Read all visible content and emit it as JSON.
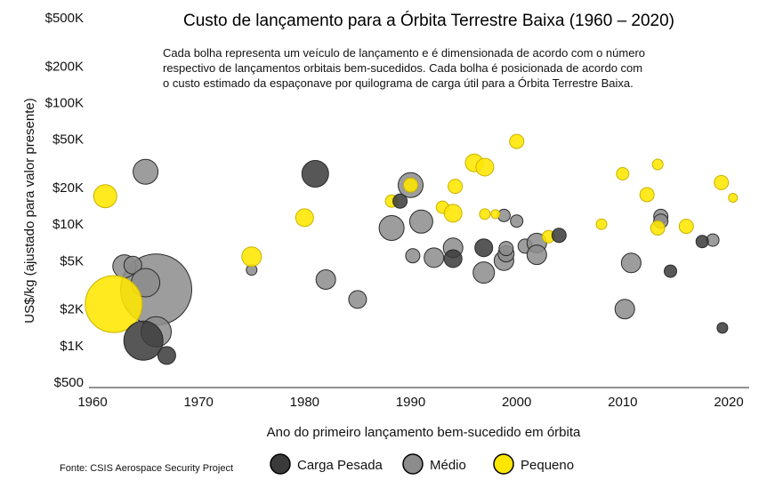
{
  "chart_data": {
    "type": "scatter",
    "title": "Custo de lançamento para a Órbita Terrestre Baixa (1960 – 2020)",
    "annotation": [
      "Cada bolha representa um veículo de lançamento e é dimensionada de acordo com o número",
      "respectivo de lançamentos orbitais bem-sucedidos. Cada bolha é posicionada de acordo com",
      "o custo estimado da espaçonave por quilograma de carga útil para a Órbita Terrestre Baixa."
    ],
    "xlabel": "Ano do primeiro lançamento bem-sucedido em órbita",
    "ylabel": "US$/kg (ajustado para valor presente)",
    "source": "Fonte: CSIS Aerospace Security Project",
    "y_scale": "log",
    "xlim": [
      1960,
      2022
    ],
    "ylim": [
      500,
      500000
    ],
    "x_ticks": [
      {
        "value": 1960,
        "label": "1960"
      },
      {
        "value": 1970,
        "label": "1970"
      },
      {
        "value": 1980,
        "label": "1980"
      },
      {
        "value": 1990,
        "label": "1990"
      },
      {
        "value": 2000,
        "label": "2000"
      },
      {
        "value": 2010,
        "label": "2010"
      },
      {
        "value": 2020,
        "label": "2020"
      }
    ],
    "y_ticks": [
      {
        "value": 500,
        "label": "$500"
      },
      {
        "value": 1000,
        "label": "$1K"
      },
      {
        "value": 2000,
        "label": "$2K"
      },
      {
        "value": 5000,
        "label": "$5K"
      },
      {
        "value": 10000,
        "label": "$10K"
      },
      {
        "value": 20000,
        "label": "$20K"
      },
      {
        "value": 50000,
        "label": "$50K"
      },
      {
        "value": 100000,
        "label": "$100K"
      },
      {
        "value": 200000,
        "label": "$200K"
      },
      {
        "value": 500000,
        "label": "$500K"
      }
    ],
    "grid": false,
    "legend_position": "bottom",
    "series": [
      {
        "name": "Carga Pesada",
        "color": "#3a3a3a",
        "points": [
          {
            "x": 1964.8,
            "y": 1100,
            "r": 22
          },
          {
            "x": 1967.0,
            "y": 830,
            "r": 10
          },
          {
            "x": 1981.0,
            "y": 26000,
            "r": 15
          },
          {
            "x": 1989.0,
            "y": 15500,
            "r": 8
          },
          {
            "x": 1994.0,
            "y": 5200,
            "r": 10
          },
          {
            "x": 1996.9,
            "y": 6400,
            "r": 10
          },
          {
            "x": 2004.0,
            "y": 8100,
            "r": 8
          },
          {
            "x": 2014.5,
            "y": 4100,
            "r": 7
          },
          {
            "x": 2017.5,
            "y": 7200,
            "r": 7
          },
          {
            "x": 2019.4,
            "y": 1400,
            "r": 6
          }
        ]
      },
      {
        "name": "Médio",
        "color": "#8c8c8c",
        "points": [
          {
            "x": 1966.0,
            "y": 2900,
            "r": 40
          },
          {
            "x": 1966.0,
            "y": 1300,
            "r": 17
          },
          {
            "x": 1963.0,
            "y": 4500,
            "r": 13
          },
          {
            "x": 1963.8,
            "y": 4600,
            "r": 10
          },
          {
            "x": 1965.0,
            "y": 3300,
            "r": 16
          },
          {
            "x": 1965.0,
            "y": 27000,
            "r": 14
          },
          {
            "x": 1975.0,
            "y": 4200,
            "r": 6
          },
          {
            "x": 1982.0,
            "y": 3500,
            "r": 11
          },
          {
            "x": 1985.0,
            "y": 2400,
            "r": 10
          },
          {
            "x": 1988.2,
            "y": 9300,
            "r": 14
          },
          {
            "x": 1990.2,
            "y": 5500,
            "r": 8
          },
          {
            "x": 1990.0,
            "y": 21000,
            "r": 14
          },
          {
            "x": 1991.0,
            "y": 10500,
            "r": 13
          },
          {
            "x": 1992.2,
            "y": 5300,
            "r": 11
          },
          {
            "x": 1994.0,
            "y": 6400,
            "r": 11
          },
          {
            "x": 1996.9,
            "y": 4000,
            "r": 12
          },
          {
            "x": 1998.8,
            "y": 5000,
            "r": 11
          },
          {
            "x": 1999.0,
            "y": 5700,
            "r": 9
          },
          {
            "x": 1999.0,
            "y": 6300,
            "r": 8
          },
          {
            "x": 1998.8,
            "y": 11800,
            "r": 7
          },
          {
            "x": 2000.0,
            "y": 10600,
            "r": 7
          },
          {
            "x": 2000.8,
            "y": 6600,
            "r": 8
          },
          {
            "x": 2001.9,
            "y": 7000,
            "r": 11
          },
          {
            "x": 2001.9,
            "y": 5600,
            "r": 11
          },
          {
            "x": 2010.2,
            "y": 2000,
            "r": 11
          },
          {
            "x": 2010.8,
            "y": 4800,
            "r": 11
          },
          {
            "x": 2013.6,
            "y": 11600,
            "r": 8
          },
          {
            "x": 2013.6,
            "y": 10600,
            "r": 8
          },
          {
            "x": 2018.5,
            "y": 7400,
            "r": 7
          }
        ]
      },
      {
        "name": "Pequeno",
        "color": "#ffe600",
        "points": [
          {
            "x": 1961.2,
            "y": 17000,
            "r": 13
          },
          {
            "x": 1962.0,
            "y": 2200,
            "r": 32
          },
          {
            "x": 1975.0,
            "y": 5400,
            "r": 11
          },
          {
            "x": 1980.0,
            "y": 11300,
            "r": 10
          },
          {
            "x": 1988.2,
            "y": 15500,
            "r": 7
          },
          {
            "x": 1990.0,
            "y": 21000,
            "r": 8
          },
          {
            "x": 1993.0,
            "y": 13800,
            "r": 7
          },
          {
            "x": 1994.0,
            "y": 12300,
            "r": 10
          },
          {
            "x": 1994.2,
            "y": 20500,
            "r": 8
          },
          {
            "x": 1996.0,
            "y": 32000,
            "r": 10
          },
          {
            "x": 1997.0,
            "y": 29500,
            "r": 10
          },
          {
            "x": 1997.0,
            "y": 12100,
            "r": 6
          },
          {
            "x": 1998.0,
            "y": 12100,
            "r": 5
          },
          {
            "x": 2000.0,
            "y": 48000,
            "r": 8
          },
          {
            "x": 2003.0,
            "y": 7900,
            "r": 7
          },
          {
            "x": 2008.0,
            "y": 10000,
            "r": 6
          },
          {
            "x": 2010.0,
            "y": 26000,
            "r": 7
          },
          {
            "x": 2012.3,
            "y": 17500,
            "r": 8
          },
          {
            "x": 2013.3,
            "y": 31000,
            "r": 6
          },
          {
            "x": 2013.3,
            "y": 9300,
            "r": 8
          },
          {
            "x": 2016.0,
            "y": 9600,
            "r": 8
          },
          {
            "x": 2019.3,
            "y": 22000,
            "r": 8
          },
          {
            "x": 2020.4,
            "y": 16500,
            "r": 5
          }
        ]
      }
    ]
  },
  "legend": [
    {
      "label": "Carga Pesada",
      "color": "#3a3a3a"
    },
    {
      "label": "Médio",
      "color": "#8c8c8c"
    },
    {
      "label": "Pequeno",
      "color": "#ffe600"
    }
  ]
}
